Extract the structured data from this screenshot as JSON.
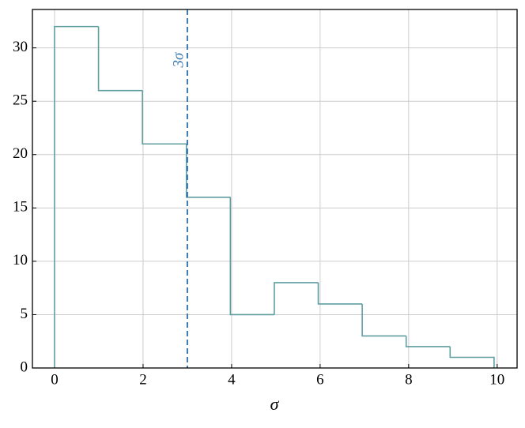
{
  "chart_data": {
    "type": "histogram",
    "bins": [
      0,
      0.993,
      1.986,
      2.979,
      3.972,
      4.965,
      5.958,
      6.951,
      7.944,
      8.937,
      9.93
    ],
    "values": [
      32,
      26,
      21,
      16,
      5,
      8,
      6,
      3,
      2,
      1
    ],
    "color": "#5f9ea0",
    "xlabel": "σ",
    "xlim": [
      -0.5,
      10.45
    ],
    "xticks": [
      0,
      2,
      4,
      6,
      8,
      10
    ],
    "ylim": [
      0,
      33.6
    ],
    "yticks": [
      0,
      5,
      10,
      15,
      20,
      25,
      30
    ],
    "grid": true,
    "vline": {
      "x": 3,
      "label": "3σ",
      "color": "#3a78b0"
    }
  }
}
